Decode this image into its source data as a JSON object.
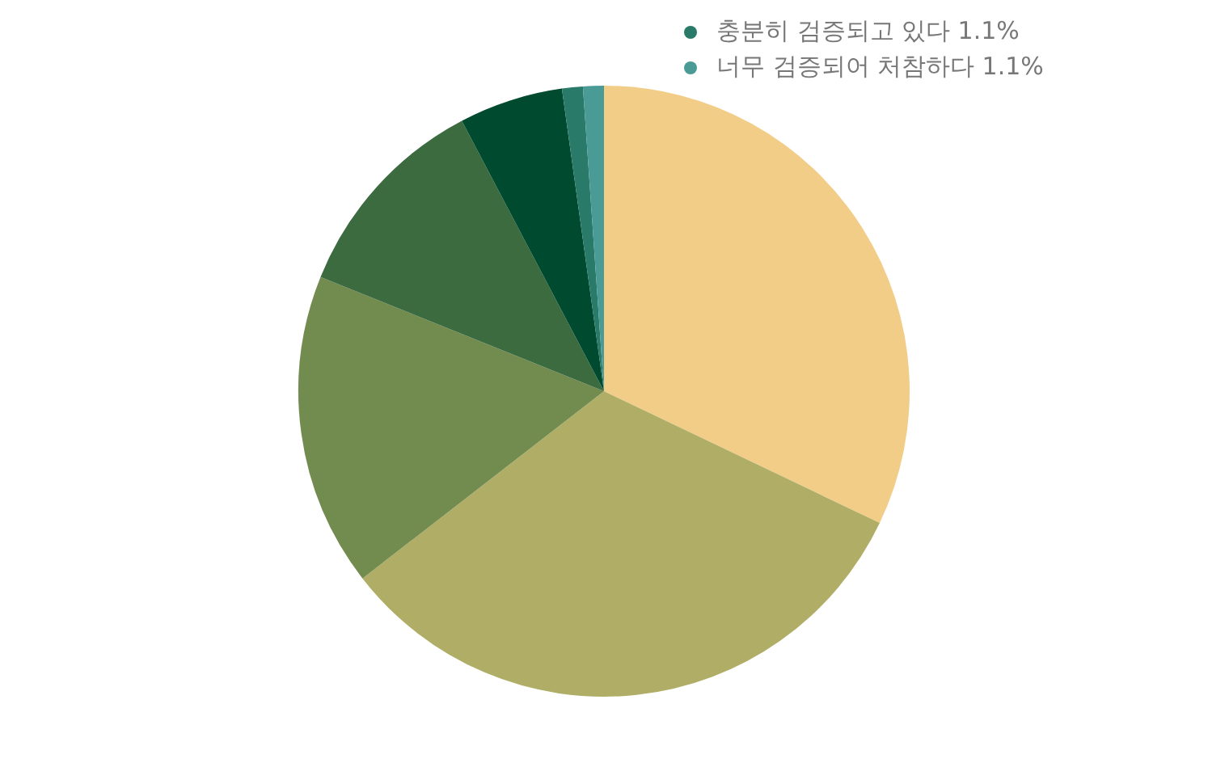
{
  "chart_data": {
    "type": "pie",
    "categories": [
      null,
      null,
      null,
      null,
      null,
      "충분히 검증되고 있다",
      "너무 검증되어 처참하다"
    ],
    "values": [
      32.1,
      32.4,
      16.6,
      11.2,
      5.5,
      1.1,
      1.1
    ],
    "value_labels": [
      null,
      null,
      null,
      null,
      null,
      "1.1%",
      "1.1%"
    ],
    "colors": [
      "#f1cd88",
      "#b0ae66",
      "#728c50",
      "#3c6b40",
      "#004b30",
      "#2a7a6a",
      "#4a9a96"
    ],
    "legend": "top right"
  }
}
